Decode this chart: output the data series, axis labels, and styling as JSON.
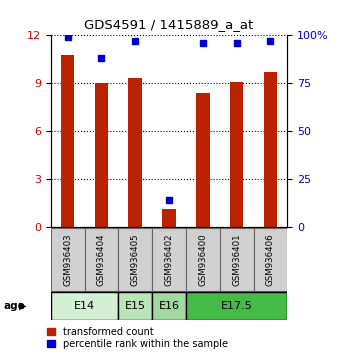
{
  "title": "GDS4591 / 1415889_a_at",
  "samples": [
    "GSM936403",
    "GSM936404",
    "GSM936405",
    "GSM936402",
    "GSM936400",
    "GSM936401",
    "GSM936406"
  ],
  "transformed_counts": [
    10.8,
    9.0,
    9.3,
    1.1,
    8.4,
    9.1,
    9.7
  ],
  "percentile_ranks": [
    99,
    88,
    97,
    14,
    96,
    96,
    97
  ],
  "age_groups": [
    {
      "label": "E14",
      "samples": [
        0,
        1
      ],
      "color": "#d4f0d4"
    },
    {
      "label": "E15",
      "samples": [
        2
      ],
      "color": "#b8e4b8"
    },
    {
      "label": "E16",
      "samples": [
        3
      ],
      "color": "#a0d8a0"
    },
    {
      "label": "E17.5",
      "samples": [
        4,
        5,
        6
      ],
      "color": "#44bb44"
    }
  ],
  "bar_color_red": "#bb2200",
  "bar_color_blue": "#0000cc",
  "bar_width": 0.4,
  "ylim_left": [
    0,
    12
  ],
  "ylim_right": [
    0,
    100
  ],
  "yticks_left": [
    0,
    3,
    6,
    9,
    12
  ],
  "yticks_right": [
    0,
    25,
    50,
    75,
    100
  ],
  "left_axis_color": "#cc0000",
  "right_axis_color": "#0000cc",
  "bg_color": "#ffffff",
  "sample_box_color": "#d0d0d0",
  "legend_red_label": "transformed count",
  "legend_blue_label": "percentile rank within the sample",
  "age_label": "age"
}
